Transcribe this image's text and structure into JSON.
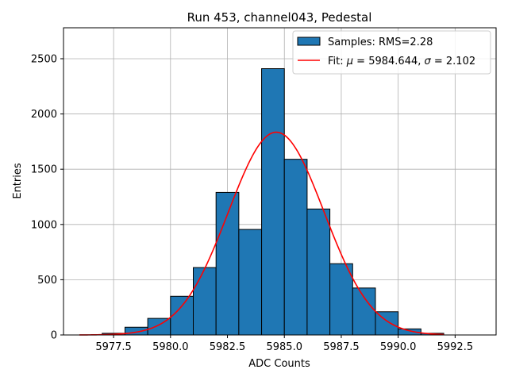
{
  "chart_data": {
    "type": "bar",
    "title": "Run 453, channel043, Pedestal",
    "xlabel": "ADC Counts",
    "ylabel": "Entries",
    "xlim": [
      5975.3,
      5994.3
    ],
    "ylim": [
      0,
      2780
    ],
    "x_ticks": [
      5977.5,
      5980.0,
      5982.5,
      5985.0,
      5987.5,
      5990.0,
      5992.5
    ],
    "x_tick_labels": [
      "5977.5",
      "5980.0",
      "5982.5",
      "5985.0",
      "5987.5",
      "5990.0",
      "5992.5"
    ],
    "y_ticks": [
      0,
      500,
      1000,
      1500,
      2000,
      2500
    ],
    "y_tick_labels": [
      "0",
      "500",
      "1000",
      "1500",
      "2000",
      "2500"
    ],
    "grid": true,
    "legend_position": "top-right",
    "histogram": {
      "name": "Samples: RMS=2.28",
      "color": "#1f77b4",
      "edge_color": "#000000",
      "bin_edges": [
        5977.0,
        5978.0,
        5979.0,
        5980.0,
        5981.0,
        5982.0,
        5983.0,
        5984.0,
        5985.0,
        5986.0,
        5987.0,
        5988.0,
        5989.0,
        5990.0,
        5991.0,
        5992.0
      ],
      "values": [
        15,
        70,
        150,
        350,
        610,
        1290,
        955,
        2410,
        1590,
        1140,
        645,
        425,
        210,
        55,
        15
      ]
    },
    "fit": {
      "name_prefix": "Fit: ",
      "mu_symbol": "μ",
      "mu_text": " = 5984.644, ",
      "sigma_symbol": "σ",
      "sigma_text": " = 2.102",
      "color": "#ff0000",
      "mu": 5984.644,
      "sigma": 2.102,
      "peak": 1835,
      "x_range": [
        5976.0,
        5992.0
      ]
    }
  }
}
